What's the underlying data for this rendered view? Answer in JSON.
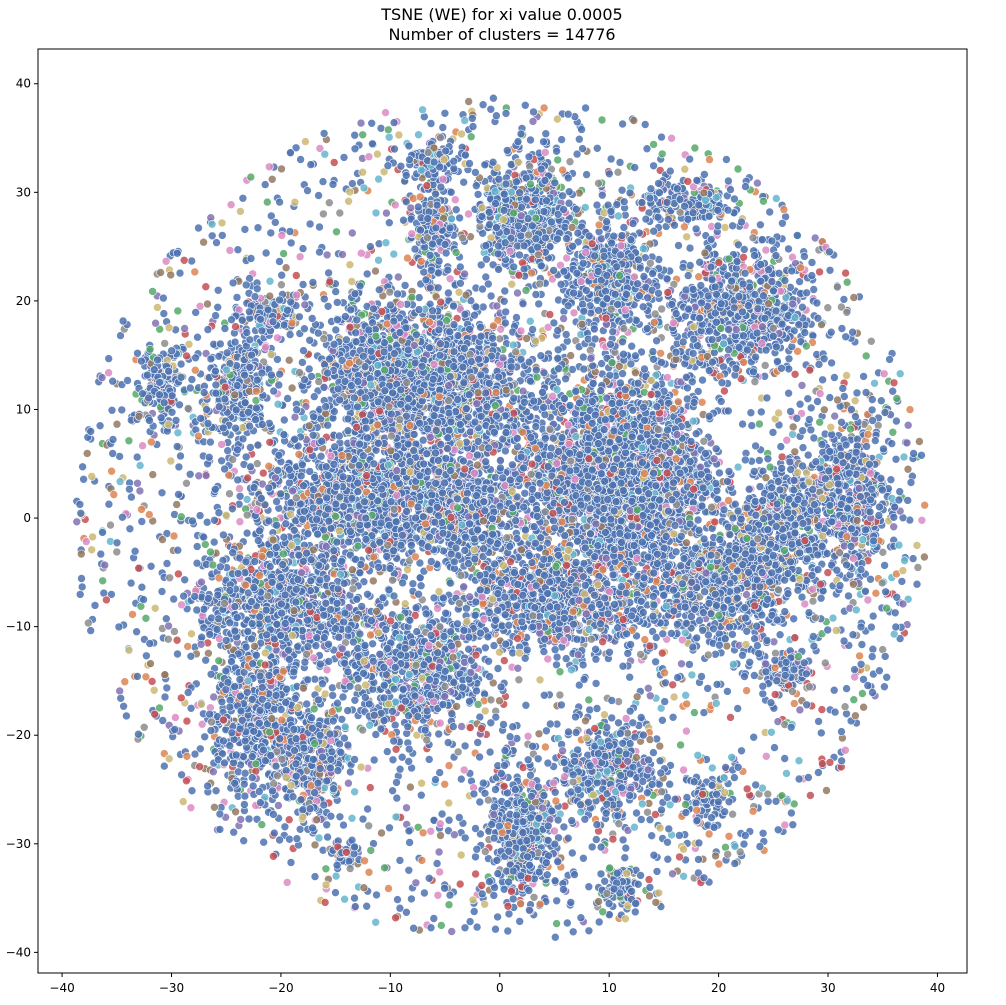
{
  "chart_data": {
    "type": "scatter",
    "title": "TSNE (WE) for xi value 0.0005",
    "subtitle": "Number of clusters = 14776",
    "xlabel": "",
    "ylabel": "",
    "xlim": [
      -42.2,
      42.7
    ],
    "ylim": [
      -41.9,
      43.2
    ],
    "xticks": [
      -40,
      -30,
      -20,
      -10,
      0,
      10,
      20,
      30,
      40
    ],
    "yticks": [
      -40,
      -30,
      -20,
      -10,
      0,
      10,
      20,
      30,
      40
    ],
    "grid": false,
    "legend": "none",
    "colors": [
      "#4c72b0",
      "#dd8452",
      "#55a868",
      "#c44e52",
      "#8172b3",
      "#937860",
      "#da8bc3",
      "#8c8c8c",
      "#ccb974",
      "#64b5cd"
    ],
    "dominant_color": "#4c72b0",
    "point_opacity": 0.85,
    "clusters": [
      {
        "cx": 3,
        "cy": 28,
        "rx": 3,
        "ry": 5
      },
      {
        "cx": -6,
        "cy": 27,
        "rx": 2,
        "ry": 4
      },
      {
        "cx": 0,
        "cy": 28,
        "rx": 2.2,
        "ry": 3.5
      },
      {
        "cx": 9,
        "cy": 3,
        "rx": 8,
        "ry": 9
      },
      {
        "cx": 13,
        "cy": 5,
        "rx": 6,
        "ry": 7
      },
      {
        "cx": -12,
        "cy": 2,
        "rx": 10,
        "ry": 6
      },
      {
        "cx": -5,
        "cy": 12,
        "rx": 8,
        "ry": 7
      },
      {
        "cx": -11,
        "cy": 14,
        "rx": 5,
        "ry": 5
      },
      {
        "cx": -20,
        "cy": -8,
        "rx": 7,
        "ry": 5
      },
      {
        "cx": 20,
        "cy": -6,
        "rx": 7,
        "ry": 5
      },
      {
        "cx": 22,
        "cy": 19,
        "rx": 6,
        "ry": 5
      },
      {
        "cx": 10,
        "cy": 22,
        "rx": 4,
        "ry": 5
      },
      {
        "cx": 32,
        "cy": 2,
        "rx": 3,
        "ry": 7
      },
      {
        "cx": 26,
        "cy": 0,
        "rx": 4,
        "ry": 5
      },
      {
        "cx": 2,
        "cy": -29,
        "rx": 3,
        "ry": 6
      },
      {
        "cx": 10,
        "cy": -23,
        "rx": 4,
        "ry": 4
      },
      {
        "cx": -22,
        "cy": -19,
        "rx": 4,
        "ry": 6
      },
      {
        "cx": -17,
        "cy": -22,
        "rx": 2.5,
        "ry": 5
      },
      {
        "cx": -24,
        "cy": 12,
        "rx": 3,
        "ry": 5
      },
      {
        "cx": -31,
        "cy": 12,
        "rx": 2,
        "ry": 3
      },
      {
        "cx": -21,
        "cy": 19,
        "rx": 2.5,
        "ry": 2
      },
      {
        "cx": -8,
        "cy": -14,
        "rx": 6,
        "ry": 5
      },
      {
        "cx": 5,
        "cy": -8,
        "rx": 8,
        "ry": 4
      },
      {
        "cx": -3,
        "cy": 0,
        "rx": 4,
        "ry": 4
      },
      {
        "cx": 19,
        "cy": -26,
        "rx": 1.8,
        "ry": 2
      },
      {
        "cx": 11,
        "cy": -34,
        "rx": 2,
        "ry": 1.5
      },
      {
        "cx": -6,
        "cy": 33,
        "rx": 3,
        "ry": 1.5
      },
      {
        "cx": 17,
        "cy": 29,
        "rx": 4,
        "ry": 2
      },
      {
        "cx": 26,
        "cy": -14,
        "rx": 2,
        "ry": 2
      },
      {
        "cx": -14,
        "cy": -31,
        "rx": 1.5,
        "ry": 1
      }
    ],
    "scatter_extent": {
      "center": [
        0,
        0
      ],
      "radius": 39
    }
  }
}
